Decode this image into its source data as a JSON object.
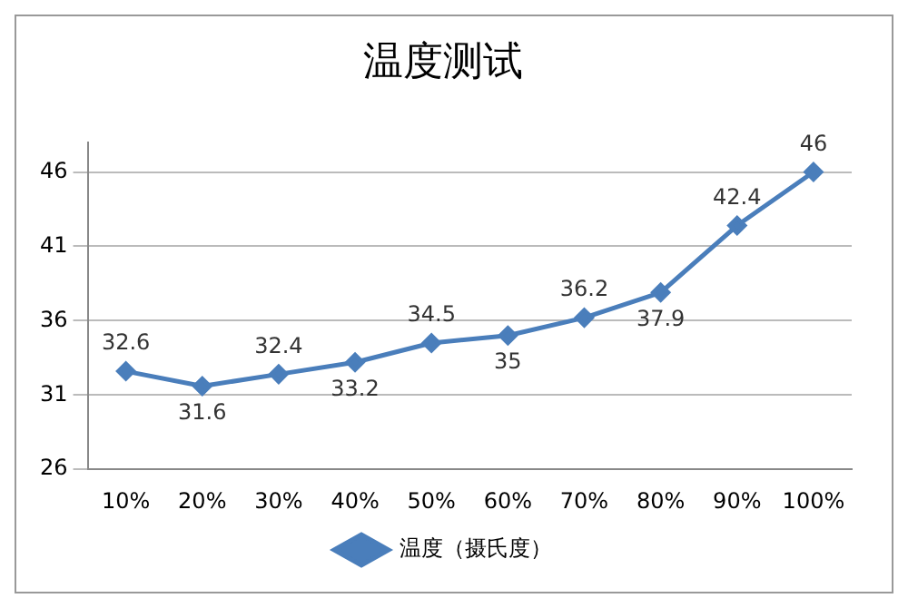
{
  "chart_data": {
    "type": "line",
    "title": "温度测试",
    "categories": [
      "10%",
      "20%",
      "30%",
      "40%",
      "50%",
      "60%",
      "70%",
      "80%",
      "90%",
      "100%"
    ],
    "series": [
      {
        "name": "温度（摄氏度）",
        "color": "#4a7ebb",
        "values": [
          32.6,
          31.6,
          32.4,
          33.2,
          34.5,
          35,
          36.2,
          37.9,
          42.4,
          46
        ]
      }
    ],
    "ylim": [
      26,
      48
    ],
    "yticks": [
      26,
      31,
      36,
      41,
      46
    ],
    "grid": "y",
    "legend": "bottom",
    "marker": "diamond",
    "data_labels": true
  }
}
